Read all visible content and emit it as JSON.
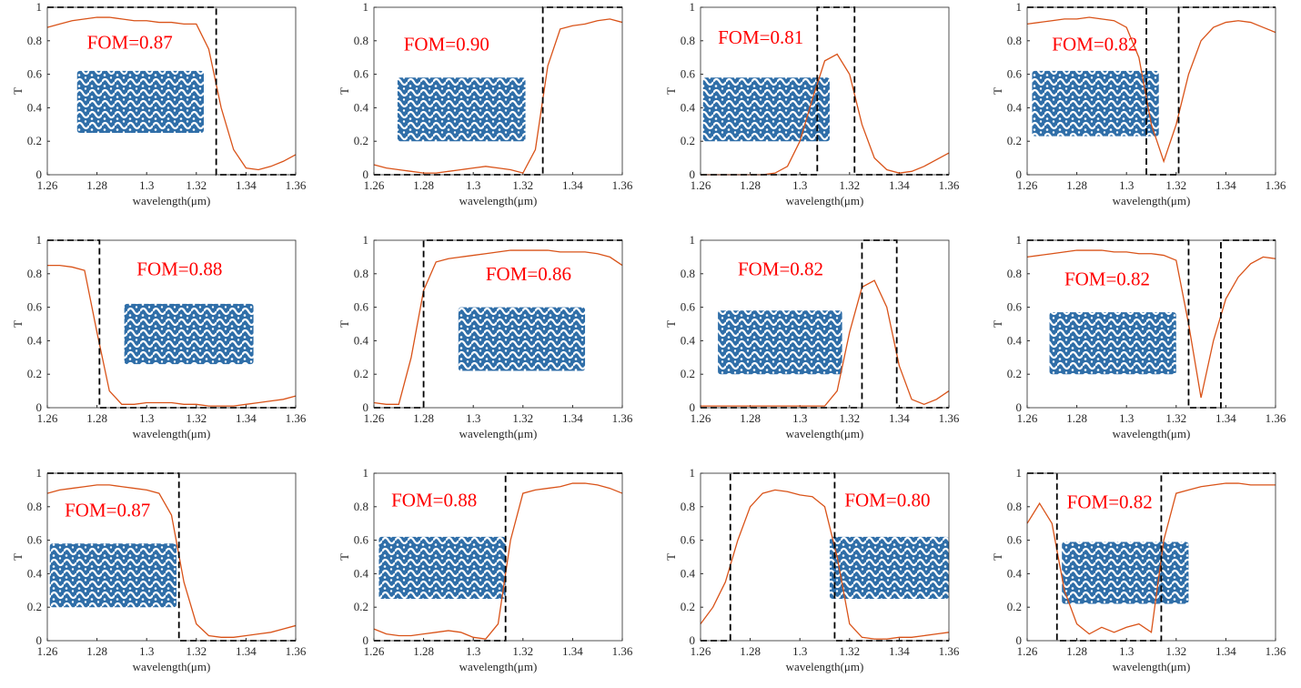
{
  "chart_data": [
    {
      "type": "line",
      "annotation": "FOM=0.87",
      "xlabel": "wavelength(μm)",
      "ylabel": "T",
      "x": [
        1.26,
        1.265,
        1.27,
        1.275,
        1.28,
        1.285,
        1.29,
        1.295,
        1.3,
        1.305,
        1.31,
        1.315,
        1.32,
        1.325,
        1.33,
        1.335,
        1.34,
        1.345,
        1.35,
        1.355,
        1.36
      ],
      "series": [
        {
          "color": "#d95319",
          "values": [
            0.88,
            0.9,
            0.92,
            0.93,
            0.94,
            0.94,
            0.93,
            0.92,
            0.92,
            0.91,
            0.91,
            0.9,
            0.9,
            0.75,
            0.4,
            0.15,
            0.04,
            0.03,
            0.05,
            0.08,
            0.12
          ]
        },
        {
          "color": "#000000",
          "dash": true,
          "x": [
            1.26,
            1.328,
            1.328,
            1.36
          ],
          "values": [
            1,
            1,
            0,
            0
          ]
        }
      ],
      "xlim": [
        1.26,
        1.36
      ],
      "ylim": [
        0,
        1
      ],
      "xticks": [
        1.26,
        1.28,
        1.3,
        1.32,
        1.34,
        1.36
      ],
      "yticks": [
        0,
        0.2,
        0.4,
        0.6,
        0.8,
        1
      ]
    },
    {
      "type": "line",
      "annotation": "FOM=0.90",
      "xlabel": "wavelength(μm)",
      "ylabel": "T",
      "x": [
        1.26,
        1.265,
        1.27,
        1.275,
        1.28,
        1.285,
        1.29,
        1.295,
        1.3,
        1.305,
        1.31,
        1.315,
        1.32,
        1.325,
        1.33,
        1.335,
        1.34,
        1.345,
        1.35,
        1.355,
        1.36
      ],
      "series": [
        {
          "color": "#d95319",
          "values": [
            0.06,
            0.04,
            0.03,
            0.02,
            0.01,
            0.01,
            0.02,
            0.03,
            0.04,
            0.05,
            0.04,
            0.03,
            0.01,
            0.15,
            0.65,
            0.87,
            0.89,
            0.9,
            0.92,
            0.93,
            0.91
          ]
        },
        {
          "color": "#000000",
          "dash": true,
          "x": [
            1.26,
            1.328,
            1.328,
            1.36
          ],
          "values": [
            0,
            0,
            1,
            1
          ]
        }
      ],
      "xlim": [
        1.26,
        1.36
      ],
      "ylim": [
        0,
        1
      ],
      "xticks": [
        1.26,
        1.28,
        1.3,
        1.32,
        1.34,
        1.36
      ],
      "yticks": [
        0,
        0.2,
        0.4,
        0.6,
        0.8,
        1
      ]
    },
    {
      "type": "line",
      "annotation": "FOM=0.81",
      "xlabel": "wavelength(μm)",
      "ylabel": "T",
      "x": [
        1.26,
        1.265,
        1.27,
        1.275,
        1.28,
        1.285,
        1.29,
        1.295,
        1.3,
        1.305,
        1.31,
        1.315,
        1.32,
        1.325,
        1.33,
        1.335,
        1.34,
        1.345,
        1.35,
        1.355,
        1.36
      ],
      "series": [
        {
          "color": "#d95319",
          "values": [
            0,
            0,
            0,
            0,
            0,
            0,
            0.01,
            0.05,
            0.2,
            0.45,
            0.68,
            0.72,
            0.6,
            0.3,
            0.1,
            0.03,
            0.01,
            0.02,
            0.05,
            0.09,
            0.13
          ]
        },
        {
          "color": "#000000",
          "dash": true,
          "x": [
            1.26,
            1.307,
            1.307,
            1.322,
            1.322,
            1.36
          ],
          "values": [
            0,
            0,
            1,
            1,
            0,
            0
          ]
        }
      ],
      "xlim": [
        1.26,
        1.36
      ],
      "ylim": [
        0,
        1
      ],
      "xticks": [
        1.26,
        1.28,
        1.3,
        1.32,
        1.34,
        1.36
      ],
      "yticks": [
        0,
        0.2,
        0.4,
        0.6,
        0.8,
        1
      ]
    },
    {
      "type": "line",
      "annotation": "FOM=0.82",
      "xlabel": "wavelength(μm)",
      "ylabel": "T",
      "x": [
        1.26,
        1.265,
        1.27,
        1.275,
        1.28,
        1.285,
        1.29,
        1.295,
        1.3,
        1.305,
        1.31,
        1.315,
        1.32,
        1.325,
        1.33,
        1.335,
        1.34,
        1.345,
        1.35,
        1.355,
        1.36
      ],
      "series": [
        {
          "color": "#d95319",
          "values": [
            0.9,
            0.91,
            0.92,
            0.93,
            0.93,
            0.94,
            0.93,
            0.92,
            0.88,
            0.7,
            0.3,
            0.08,
            0.3,
            0.6,
            0.8,
            0.88,
            0.91,
            0.92,
            0.91,
            0.88,
            0.85
          ]
        },
        {
          "color": "#000000",
          "dash": true,
          "x": [
            1.26,
            1.308,
            1.308,
            1.321,
            1.321,
            1.36
          ],
          "values": [
            1,
            1,
            0,
            0,
            1,
            1
          ]
        }
      ],
      "xlim": [
        1.26,
        1.36
      ],
      "ylim": [
        0,
        1
      ],
      "xticks": [
        1.26,
        1.28,
        1.3,
        1.32,
        1.34,
        1.36
      ],
      "yticks": [
        0,
        0.2,
        0.4,
        0.6,
        0.8,
        1
      ]
    },
    {
      "type": "line",
      "annotation": "FOM=0.88",
      "xlabel": "wavelength(μm)",
      "ylabel": "T",
      "x": [
        1.26,
        1.265,
        1.27,
        1.275,
        1.28,
        1.285,
        1.29,
        1.295,
        1.3,
        1.305,
        1.31,
        1.315,
        1.32,
        1.325,
        1.33,
        1.335,
        1.34,
        1.345,
        1.35,
        1.355,
        1.36
      ],
      "series": [
        {
          "color": "#d95319",
          "values": [
            0.85,
            0.85,
            0.84,
            0.82,
            0.45,
            0.1,
            0.02,
            0.02,
            0.03,
            0.03,
            0.03,
            0.02,
            0.02,
            0.01,
            0.01,
            0.01,
            0.02,
            0.03,
            0.04,
            0.05,
            0.07
          ]
        },
        {
          "color": "#000000",
          "dash": true,
          "x": [
            1.26,
            1.281,
            1.281,
            1.36
          ],
          "values": [
            1,
            1,
            0,
            0
          ]
        }
      ],
      "xlim": [
        1.26,
        1.36
      ],
      "ylim": [
        0,
        1
      ],
      "xticks": [
        1.26,
        1.28,
        1.3,
        1.32,
        1.34,
        1.36
      ],
      "yticks": [
        0,
        0.2,
        0.4,
        0.6,
        0.8,
        1
      ]
    },
    {
      "type": "line",
      "annotation": "FOM=0.86",
      "xlabel": "wavelength(μm)",
      "ylabel": "T",
      "x": [
        1.26,
        1.265,
        1.27,
        1.275,
        1.28,
        1.285,
        1.29,
        1.295,
        1.3,
        1.305,
        1.31,
        1.315,
        1.32,
        1.325,
        1.33,
        1.335,
        1.34,
        1.345,
        1.35,
        1.355,
        1.36
      ],
      "series": [
        {
          "color": "#d95319",
          "values": [
            0.03,
            0.02,
            0.02,
            0.3,
            0.7,
            0.87,
            0.89,
            0.9,
            0.91,
            0.92,
            0.93,
            0.94,
            0.94,
            0.94,
            0.94,
            0.93,
            0.93,
            0.93,
            0.92,
            0.9,
            0.85
          ]
        },
        {
          "color": "#000000",
          "dash": true,
          "x": [
            1.26,
            1.28,
            1.28,
            1.36
          ],
          "values": [
            0,
            0,
            1,
            1
          ]
        }
      ],
      "xlim": [
        1.26,
        1.36
      ],
      "ylim": [
        0,
        1
      ],
      "xticks": [
        1.26,
        1.28,
        1.3,
        1.32,
        1.34,
        1.36
      ],
      "yticks": [
        0,
        0.2,
        0.4,
        0.6,
        0.8,
        1
      ]
    },
    {
      "type": "line",
      "annotation": "FOM=0.82",
      "xlabel": "wavelength(μm)",
      "ylabel": "T",
      "x": [
        1.26,
        1.265,
        1.27,
        1.275,
        1.28,
        1.285,
        1.29,
        1.295,
        1.3,
        1.305,
        1.31,
        1.315,
        1.32,
        1.325,
        1.33,
        1.335,
        1.34,
        1.345,
        1.35,
        1.355,
        1.36
      ],
      "series": [
        {
          "color": "#d95319",
          "values": [
            0.01,
            0.01,
            0.01,
            0.01,
            0.01,
            0.01,
            0.01,
            0.01,
            0.01,
            0.01,
            0.01,
            0.1,
            0.45,
            0.72,
            0.76,
            0.6,
            0.25,
            0.05,
            0.02,
            0.05,
            0.1
          ]
        },
        {
          "color": "#000000",
          "dash": true,
          "x": [
            1.26,
            1.325,
            1.325,
            1.339,
            1.339,
            1.36
          ],
          "values": [
            0,
            0,
            1,
            1,
            0,
            0
          ]
        }
      ],
      "xlim": [
        1.26,
        1.36
      ],
      "ylim": [
        0,
        1
      ],
      "xticks": [
        1.26,
        1.28,
        1.3,
        1.32,
        1.34,
        1.36
      ],
      "yticks": [
        0,
        0.2,
        0.4,
        0.6,
        0.8,
        1
      ]
    },
    {
      "type": "line",
      "annotation": "FOM=0.82",
      "xlabel": "wavelength(μm)",
      "ylabel": "T",
      "x": [
        1.26,
        1.265,
        1.27,
        1.275,
        1.28,
        1.285,
        1.29,
        1.295,
        1.3,
        1.305,
        1.31,
        1.315,
        1.32,
        1.325,
        1.33,
        1.335,
        1.34,
        1.345,
        1.35,
        1.355,
        1.36
      ],
      "series": [
        {
          "color": "#d95319",
          "values": [
            0.9,
            0.91,
            0.92,
            0.93,
            0.94,
            0.94,
            0.94,
            0.93,
            0.93,
            0.92,
            0.92,
            0.91,
            0.88,
            0.5,
            0.06,
            0.4,
            0.65,
            0.78,
            0.86,
            0.9,
            0.89
          ]
        },
        {
          "color": "#000000",
          "dash": true,
          "x": [
            1.26,
            1.325,
            1.325,
            1.338,
            1.338,
            1.36
          ],
          "values": [
            1,
            1,
            0,
            0,
            1,
            1
          ]
        }
      ],
      "xlim": [
        1.26,
        1.36
      ],
      "ylim": [
        0,
        1
      ],
      "xticks": [
        1.26,
        1.28,
        1.3,
        1.32,
        1.34,
        1.36
      ],
      "yticks": [
        0,
        0.2,
        0.4,
        0.6,
        0.8,
        1
      ]
    },
    {
      "type": "line",
      "annotation": "FOM=0.87",
      "xlabel": "wavelength(μm)",
      "ylabel": "T",
      "x": [
        1.26,
        1.265,
        1.27,
        1.275,
        1.28,
        1.285,
        1.29,
        1.295,
        1.3,
        1.305,
        1.31,
        1.315,
        1.32,
        1.325,
        1.33,
        1.335,
        1.34,
        1.345,
        1.35,
        1.355,
        1.36
      ],
      "series": [
        {
          "color": "#d95319",
          "values": [
            0.88,
            0.9,
            0.91,
            0.92,
            0.93,
            0.93,
            0.92,
            0.91,
            0.9,
            0.88,
            0.75,
            0.35,
            0.1,
            0.03,
            0.02,
            0.02,
            0.03,
            0.04,
            0.05,
            0.07,
            0.09
          ]
        },
        {
          "color": "#000000",
          "dash": true,
          "x": [
            1.26,
            1.313,
            1.313,
            1.36
          ],
          "values": [
            1,
            1,
            0,
            0
          ]
        }
      ],
      "xlim": [
        1.26,
        1.36
      ],
      "ylim": [
        0,
        1
      ],
      "xticks": [
        1.26,
        1.28,
        1.3,
        1.32,
        1.34,
        1.36
      ],
      "yticks": [
        0,
        0.2,
        0.4,
        0.6,
        0.8,
        1
      ]
    },
    {
      "type": "line",
      "annotation": "FOM=0.88",
      "xlabel": "wavelength(μm)",
      "ylabel": "T",
      "x": [
        1.26,
        1.265,
        1.27,
        1.275,
        1.28,
        1.285,
        1.29,
        1.295,
        1.3,
        1.305,
        1.31,
        1.315,
        1.32,
        1.325,
        1.33,
        1.335,
        1.34,
        1.345,
        1.35,
        1.355,
        1.36
      ],
      "series": [
        {
          "color": "#d95319",
          "values": [
            0.07,
            0.04,
            0.03,
            0.03,
            0.04,
            0.05,
            0.06,
            0.05,
            0.02,
            0.01,
            0.1,
            0.6,
            0.88,
            0.9,
            0.91,
            0.92,
            0.94,
            0.94,
            0.93,
            0.91,
            0.88
          ]
        },
        {
          "color": "#000000",
          "dash": true,
          "x": [
            1.26,
            1.313,
            1.313,
            1.36
          ],
          "values": [
            0,
            0,
            1,
            1
          ]
        }
      ],
      "xlim": [
        1.26,
        1.36
      ],
      "ylim": [
        0,
        1
      ],
      "xticks": [
        1.26,
        1.28,
        1.3,
        1.32,
        1.34,
        1.36
      ],
      "yticks": [
        0,
        0.2,
        0.4,
        0.6,
        0.8,
        1
      ]
    },
    {
      "type": "line",
      "annotation": "FOM=0.80",
      "xlabel": "wavelength(μm)",
      "ylabel": "T",
      "x": [
        1.26,
        1.265,
        1.27,
        1.275,
        1.28,
        1.285,
        1.29,
        1.295,
        1.3,
        1.305,
        1.31,
        1.315,
        1.32,
        1.325,
        1.33,
        1.335,
        1.34,
        1.345,
        1.35,
        1.355,
        1.36
      ],
      "series": [
        {
          "color": "#d95319",
          "values": [
            0.1,
            0.2,
            0.35,
            0.6,
            0.8,
            0.88,
            0.9,
            0.89,
            0.87,
            0.86,
            0.8,
            0.5,
            0.1,
            0.02,
            0.01,
            0.01,
            0.02,
            0.02,
            0.03,
            0.04,
            0.05
          ]
        },
        {
          "color": "#000000",
          "dash": true,
          "x": [
            1.26,
            1.272,
            1.272,
            1.314,
            1.314,
            1.36
          ],
          "values": [
            0,
            0,
            1,
            1,
            0,
            0
          ]
        }
      ],
      "xlim": [
        1.26,
        1.36
      ],
      "ylim": [
        0,
        1
      ],
      "xticks": [
        1.26,
        1.28,
        1.3,
        1.32,
        1.34,
        1.36
      ],
      "yticks": [
        0,
        0.2,
        0.4,
        0.6,
        0.8,
        1
      ]
    },
    {
      "type": "line",
      "annotation": "FOM=0.82",
      "xlabel": "wavelength(μm)",
      "ylabel": "T",
      "x": [
        1.26,
        1.265,
        1.27,
        1.275,
        1.28,
        1.285,
        1.29,
        1.295,
        1.3,
        1.305,
        1.31,
        1.315,
        1.32,
        1.325,
        1.33,
        1.335,
        1.34,
        1.345,
        1.35,
        1.355,
        1.36
      ],
      "series": [
        {
          "color": "#d95319",
          "values": [
            0.7,
            0.82,
            0.7,
            0.3,
            0.1,
            0.04,
            0.08,
            0.05,
            0.08,
            0.1,
            0.05,
            0.6,
            0.88,
            0.9,
            0.92,
            0.93,
            0.94,
            0.94,
            0.93,
            0.93,
            0.93
          ]
        },
        {
          "color": "#000000",
          "dash": true,
          "x": [
            1.26,
            1.272,
            1.272,
            1.314,
            1.314,
            1.36
          ],
          "values": [
            1,
            1,
            0,
            0,
            1,
            1
          ]
        }
      ],
      "xlim": [
        1.26,
        1.36
      ],
      "ylim": [
        0,
        1
      ],
      "xticks": [
        1.26,
        1.28,
        1.3,
        1.32,
        1.34,
        1.36
      ],
      "yticks": [
        0,
        0.2,
        0.4,
        0.6,
        0.8,
        1
      ]
    }
  ]
}
